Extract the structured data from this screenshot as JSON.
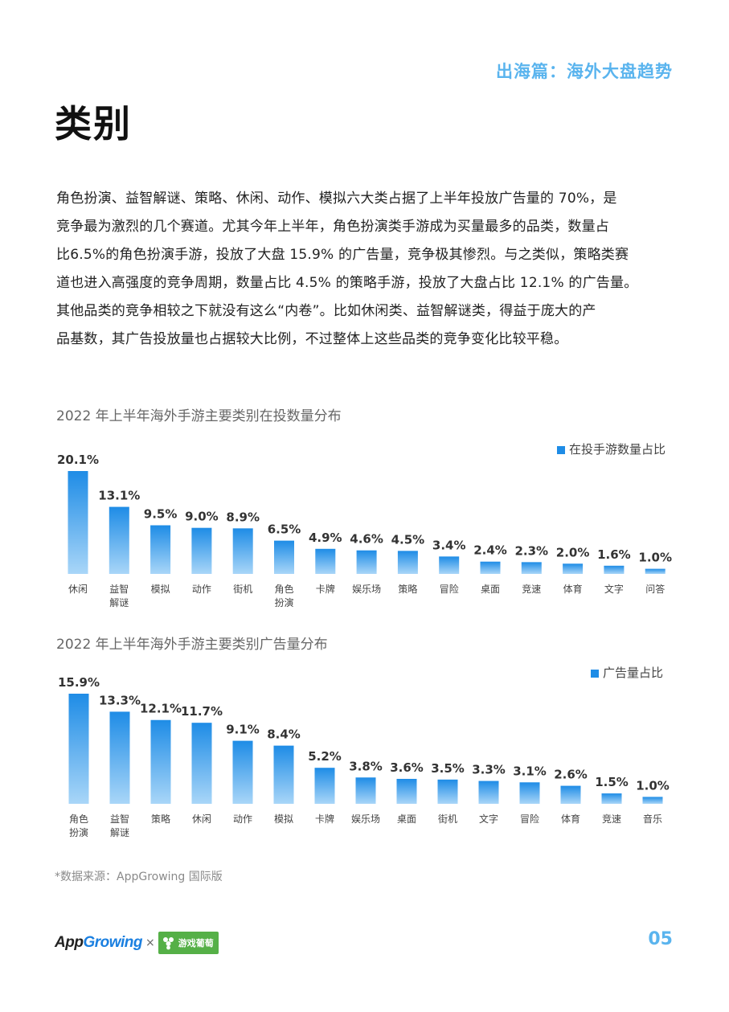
{
  "header": {
    "section": "出海篇：海外大盘趋势"
  },
  "page": {
    "title": "类别",
    "body_lines": [
      "角色扮演、益智解谜、策略、休闲、动作、模拟六大类占据了上半年投放广告量的 70%，是",
      "竞争最为激烈的几个赛道。尤其今年上半年，角色扮演类手游成为买量最多的品类，数量占",
      "比6.5%的角色扮演手游，投放了大盘 15.9% 的广告量，竞争极其惨烈。与之类似，策略类赛",
      "道也进入高强度的竞争周期，数量占比 4.5% 的策略手游，投放了大盘占比 12.1% 的广告量。",
      "其他品类的竞争相较之下就没有这么“内卷”。比如休闲类、益智解谜类，得益于庞大的产",
      "品基数，其广告投放量也占据较大比例，不过整体上这些品类的竞争变化比较平稳。"
    ],
    "source_note": "*数据来源：AppGrowing 国际版",
    "page_number": "05"
  },
  "footer": {
    "logo_left_a": "App",
    "logo_left_b": "Growing",
    "times": "×",
    "logo_right": "游戏葡萄"
  },
  "colors": {
    "accent": "#5ab4ee",
    "bar_top": "#1e8ce6",
    "bar_bottom": "#a9d6f8"
  },
  "chart_data": [
    {
      "type": "bar",
      "title": "2022 年上半年海外手游主要类别在投数量分布",
      "series": [
        {
          "name": "在投手游数量占比",
          "values": [
            20.1,
            13.1,
            9.5,
            9.0,
            8.9,
            6.5,
            4.9,
            4.6,
            4.5,
            3.4,
            2.4,
            2.3,
            2.0,
            1.6,
            1.0
          ]
        }
      ],
      "value_labels": [
        "20.1%",
        "13.1%",
        "9.5%",
        "9.0%",
        "8.9%",
        "6.5%",
        "4.9%",
        "4.6%",
        "4.5%",
        "3.4%",
        "2.4%",
        "2.3%",
        "2.0%",
        "1.6%",
        "1.0%"
      ],
      "categories": [
        [
          "休闲"
        ],
        [
          "益智",
          "解谜"
        ],
        [
          "模拟"
        ],
        [
          "动作"
        ],
        [
          "街机"
        ],
        [
          "角色",
          "扮演"
        ],
        [
          "卡牌"
        ],
        [
          "娱乐场"
        ],
        [
          "策略"
        ],
        [
          "冒险"
        ],
        [
          "桌面"
        ],
        [
          "竞速"
        ],
        [
          "体育"
        ],
        [
          "文字"
        ],
        [
          "问答"
        ]
      ],
      "legend": "top-right"
    },
    {
      "type": "bar",
      "title": "2022 年上半年海外手游主要类别广告量分布",
      "series": [
        {
          "name": "广告量占比",
          "values": [
            15.9,
            13.3,
            12.1,
            11.7,
            9.1,
            8.4,
            5.2,
            3.8,
            3.6,
            3.5,
            3.3,
            3.1,
            2.6,
            1.5,
            1.0
          ]
        }
      ],
      "value_labels": [
        "15.9%",
        "13.3%",
        "12.1%",
        "11.7%",
        "9.1%",
        "8.4%",
        "5.2%",
        "3.8%",
        "3.6%",
        "3.5%",
        "3.3%",
        "3.1%",
        "2.6%",
        "1.5%",
        "1.0%"
      ],
      "categories": [
        [
          "角色",
          "扮演"
        ],
        [
          "益智",
          "解谜"
        ],
        [
          "策略"
        ],
        [
          "休闲"
        ],
        [
          "动作"
        ],
        [
          "模拟"
        ],
        [
          "卡牌"
        ],
        [
          "娱乐场"
        ],
        [
          "桌面"
        ],
        [
          "街机"
        ],
        [
          "文字"
        ],
        [
          "冒险"
        ],
        [
          "体育"
        ],
        [
          "竞速"
        ],
        [
          "音乐"
        ]
      ],
      "legend": "top-right"
    }
  ]
}
